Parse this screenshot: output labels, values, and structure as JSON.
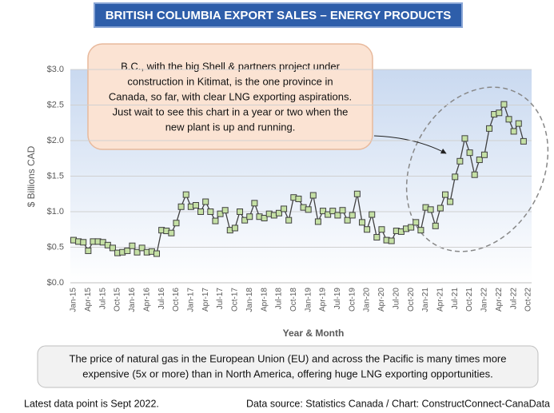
{
  "chart_data": {
    "type": "line",
    "title": "BRITISH COLUMBIA EXPORT SALES – ENERGY PRODUCTS",
    "x_label": "Year & Month",
    "y_label": "$ Billions CAD",
    "annotation": [
      "B.C., with the big Shell & partners project under",
      "construction in Kitimat, is the one province in",
      "Canada, so far, with clear LNG exporting aspirations.",
      "Just wait to see this chart in a year or two when the",
      "new plant is up and running."
    ],
    "note": [
      "The price of natural gas in the European Union (EU) and across the Pacific is many times more",
      "expensive (5x or more) than in North America, offering huge LNG exporting opportunities."
    ],
    "footnote_left": "Latest data point is Sept 2022.",
    "footnote_right": "Data source: Statistics Canada / Chart: ConstructConnect-CanaData",
    "categories": [
      "Jan-15",
      null,
      null,
      "Apr-15",
      null,
      null,
      "Jul-15",
      null,
      null,
      "Oct-15",
      null,
      null,
      "Jan-16",
      null,
      null,
      "Apr-16",
      null,
      null,
      "Jul-16",
      null,
      null,
      "Oct-16",
      null,
      null,
      "Jan-17",
      null,
      null,
      "Apr-17",
      null,
      null,
      "Jul-17",
      null,
      null,
      "Oct-17",
      null,
      null,
      "Jan-18",
      null,
      null,
      "Apr-18",
      null,
      null,
      "Jul-18",
      null,
      null,
      "Oct-18",
      null,
      null,
      "Jan-19",
      null,
      null,
      "Apr-19",
      null,
      null,
      "Jul-19",
      null,
      null,
      "Oct-19",
      null,
      null,
      "Jan-20",
      null,
      null,
      "Apr-20",
      null,
      null,
      "Jul-20",
      null,
      null,
      "Oct-20",
      null,
      null,
      "Jan-21",
      null,
      null,
      "Apr-21",
      null,
      null,
      "Jul-21",
      null,
      null,
      "Oct-21",
      null,
      null,
      "Jan-22",
      null,
      null,
      "Apr-22",
      null,
      null,
      "Jul-22",
      null,
      null,
      "Oct-22"
    ],
    "values": [
      0.6,
      0.58,
      0.57,
      0.45,
      0.58,
      0.58,
      0.57,
      0.53,
      0.49,
      0.42,
      0.43,
      0.45,
      0.52,
      0.43,
      0.49,
      0.43,
      0.44,
      0.41,
      0.74,
      0.73,
      0.7,
      0.84,
      1.07,
      1.24,
      1.07,
      1.09,
      1.0,
      1.14,
      1.0,
      0.87,
      0.97,
      1.02,
      0.74,
      0.77,
      1.0,
      0.88,
      0.93,
      1.12,
      0.93,
      0.91,
      0.97,
      0.95,
      0.98,
      1.04,
      0.88,
      1.2,
      1.18,
      1.06,
      1.03,
      1.23,
      0.86,
      1.01,
      0.96,
      1.01,
      0.95,
      1.02,
      0.88,
      0.95,
      1.25,
      0.85,
      0.75,
      0.96,
      0.64,
      0.75,
      0.6,
      0.59,
      0.73,
      0.72,
      0.76,
      0.78,
      0.85,
      0.74,
      1.06,
      1.03,
      0.8,
      1.05,
      1.24,
      1.14,
      1.49,
      1.71,
      2.03,
      1.83,
      1.52,
      1.73,
      1.8,
      2.17,
      2.37,
      2.39,
      2.51,
      2.3,
      2.13,
      2.24,
      1.99,
      null
    ],
    "color": "#404040",
    "marker_color": "#c5e0a5",
    "ylim": [
      0,
      3
    ],
    "yticks": [
      {
        "value": 0,
        "label": "$0.0"
      },
      {
        "value": 0.5,
        "label": "$0.5"
      },
      {
        "value": 1,
        "label": "$1.0"
      },
      {
        "value": 1.5,
        "label": "$1.5"
      },
      {
        "value": 2,
        "label": "$2.0"
      },
      {
        "value": 2.5,
        "label": "$2.5"
      },
      {
        "value": 3,
        "label": "$3.0"
      }
    ],
    "grid": true
  }
}
